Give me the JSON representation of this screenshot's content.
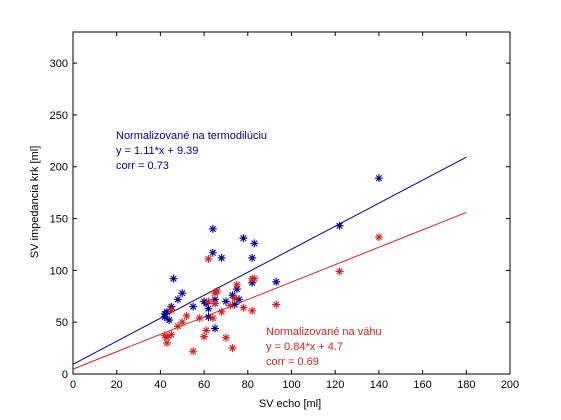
{
  "chart_data": {
    "type": "scatter",
    "xlabel": "SV echo [ml]",
    "ylabel": "SV impedancia krk [ml]",
    "xlim": [
      0,
      200
    ],
    "ylim": [
      0,
      330
    ],
    "xticks": [
      0,
      20,
      40,
      60,
      80,
      100,
      120,
      140,
      160,
      180,
      200
    ],
    "yticks": [
      0,
      50,
      100,
      150,
      200,
      250,
      300
    ],
    "grid": false,
    "series": [
      {
        "color": "#00008b",
        "marker": "*",
        "points": [
          [
            42,
            55
          ],
          [
            42,
            58
          ],
          [
            43,
            60
          ],
          [
            44,
            52
          ],
          [
            45,
            65
          ],
          [
            46,
            92
          ],
          [
            48,
            72
          ],
          [
            50,
            78
          ],
          [
            55,
            65
          ],
          [
            60,
            70
          ],
          [
            61,
            68
          ],
          [
            62,
            63
          ],
          [
            62,
            55
          ],
          [
            64,
            140
          ],
          [
            64,
            117
          ],
          [
            65,
            44
          ],
          [
            65,
            68
          ],
          [
            65,
            72
          ],
          [
            68,
            112
          ],
          [
            70,
            70
          ],
          [
            73,
            76
          ],
          [
            74,
            67
          ],
          [
            75,
            82
          ],
          [
            76,
            72
          ],
          [
            78,
            131
          ],
          [
            82,
            112
          ],
          [
            82,
            88
          ],
          [
            83,
            126
          ],
          [
            93,
            89
          ],
          [
            122,
            143
          ],
          [
            140,
            189
          ]
        ],
        "fit": {
          "slope": 1.11,
          "intercept": 9.39
        }
      },
      {
        "color": "#d42020",
        "marker": "*",
        "points": [
          [
            42,
            37
          ],
          [
            43,
            30
          ],
          [
            43,
            35
          ],
          [
            45,
            38
          ],
          [
            45,
            62
          ],
          [
            48,
            46
          ],
          [
            50,
            50
          ],
          [
            52,
            56
          ],
          [
            55,
            22
          ],
          [
            58,
            54
          ],
          [
            60,
            36
          ],
          [
            61,
            42
          ],
          [
            62,
            111
          ],
          [
            62,
            70
          ],
          [
            64,
            54
          ],
          [
            65,
            78
          ],
          [
            65,
            68
          ],
          [
            66,
            80
          ],
          [
            68,
            60
          ],
          [
            70,
            35
          ],
          [
            72,
            66
          ],
          [
            73,
            25
          ],
          [
            74,
            73
          ],
          [
            75,
            86
          ],
          [
            78,
            64
          ],
          [
            82,
            92
          ],
          [
            82,
            61
          ],
          [
            83,
            92
          ],
          [
            93,
            67
          ],
          [
            122,
            99
          ],
          [
            140,
            132
          ]
        ],
        "fit": {
          "slope": 0.84,
          "intercept": 4.7
        }
      }
    ],
    "fit_x_range": [
      0,
      180
    ],
    "annotations": [
      {
        "series": 0,
        "lines": [
          "Normalizované na termodilúciu",
          "y = 1.11*x + 9.39",
          "corr = 0.73"
        ]
      },
      {
        "series": 1,
        "lines": [
          "Normalizované na váhu",
          "y = 0.84*x + 4.7",
          "corr = 0.69"
        ]
      }
    ]
  }
}
